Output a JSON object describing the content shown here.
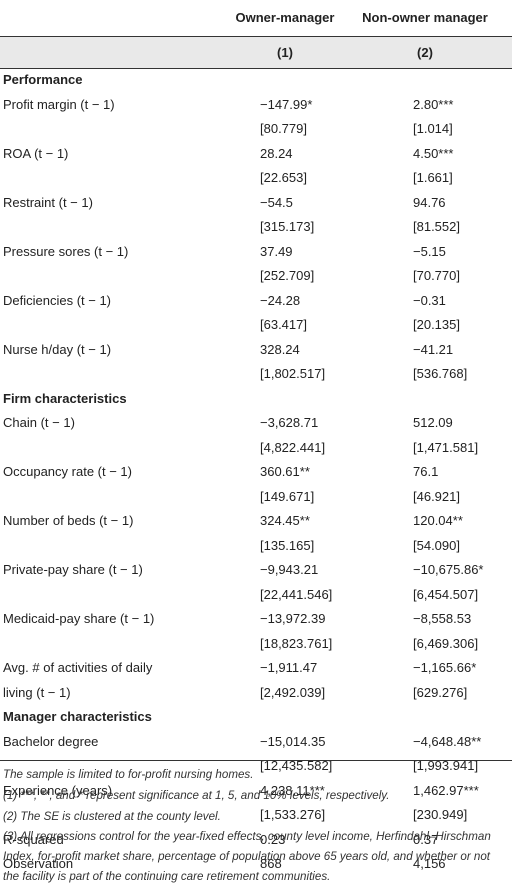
{
  "header": {
    "col1": "Owner-manager",
    "col2": "Non-owner manager",
    "col1_num": "(1)",
    "col2_num": "(2)"
  },
  "sections": [
    {
      "title": "Performance",
      "rows": [
        {
          "label": "Profit margin (t − 1)",
          "v1": "−147.99*",
          "v2": "2.80***"
        },
        {
          "label": "",
          "v1": "[80.779]",
          "v2": "[1.014]"
        },
        {
          "label": "ROA (t − 1)",
          "v1": "28.24",
          "v2": "4.50***"
        },
        {
          "label": "",
          "v1": "[22.653]",
          "v2": "[1.661]"
        },
        {
          "label": "Restraint (t − 1)",
          "v1": "−54.5",
          "v2": "94.76"
        },
        {
          "label": "",
          "v1": "[315.173]",
          "v2": "[81.552]"
        },
        {
          "label": "Pressure sores (t − 1)",
          "v1": "37.49",
          "v2": "−5.15"
        },
        {
          "label": "",
          "v1": "[252.709]",
          "v2": "[70.770]"
        },
        {
          "label": "Deficiencies (t − 1)",
          "v1": "−24.28",
          "v2": "−0.31"
        },
        {
          "label": "",
          "v1": "[63.417]",
          "v2": "[20.135]"
        },
        {
          "label": "Nurse h/day (t − 1)",
          "v1": "328.24",
          "v2": "−41.21"
        },
        {
          "label": "",
          "v1": "[1,802.517]",
          "v2": "[536.768]"
        }
      ]
    },
    {
      "title": "Firm characteristics",
      "rows": [
        {
          "label": "Chain (t − 1)",
          "v1": "−3,628.71",
          "v2": "512.09"
        },
        {
          "label": "",
          "v1": "[4,822.441]",
          "v2": "[1,471.581]"
        },
        {
          "label": "Occupancy rate (t − 1)",
          "v1": "360.61**",
          "v2": "76.1"
        },
        {
          "label": "",
          "v1": "[149.671]",
          "v2": "[46.921]"
        },
        {
          "label": "Number of beds (t − 1)",
          "v1": "324.45**",
          "v2": "120.04**"
        },
        {
          "label": "",
          "v1": "[135.165]",
          "v2": "[54.090]"
        },
        {
          "label": "Private-pay share (t − 1)",
          "v1": "−9,943.21",
          "v2": "−10,675.86*"
        },
        {
          "label": "",
          "v1": "[22,441.546]",
          "v2": "[6,454.507]"
        },
        {
          "label": "Medicaid-pay share (t − 1)",
          "v1": "−13,972.39",
          "v2": "−8,558.53"
        },
        {
          "label": "",
          "v1": "[18,823.761]",
          "v2": "[6,469.306]"
        },
        {
          "label": "Avg. # of activities of daily",
          "v1": "−1,911.47",
          "v2": "−1,165.66*"
        },
        {
          "label": "living (t − 1)",
          "v1": "[2,492.039]",
          "v2": "[629.276]"
        }
      ]
    },
    {
      "title": "Manager characteristics",
      "rows": [
        {
          "label": "Bachelor degree",
          "v1": "−15,014.35",
          "v2": "−4,648.48**"
        },
        {
          "label": "",
          "v1": "[12,435.582]",
          "v2": "[1,993.941]"
        },
        {
          "label": "Experience (years)",
          "v1": "4,238.11***",
          "v2": "1,462.97***"
        },
        {
          "label": "",
          "v1": "[1,533.276]",
          "v2": "[230.949]"
        },
        {
          "label": "R-squared",
          "v1": "0.23",
          "v2": "0.37"
        },
        {
          "label": "Observation",
          "v1": "868",
          "v2": "4,156"
        }
      ]
    }
  ],
  "notes": [
    "The sample is limited to for-profit nursing homes.",
    "(1) ***, **, and * represent significance at 1, 5, and 10% levels, respectively.",
    "(2) The SE is clustered at the county level.",
    "(3) All regressions control for the year-fixed effects, county level income, Herfindahl–Hirschman Index, for-profit market share, percentage of population above 65 years old, and whether or not the facility is part of the continuing care retirement communities."
  ]
}
